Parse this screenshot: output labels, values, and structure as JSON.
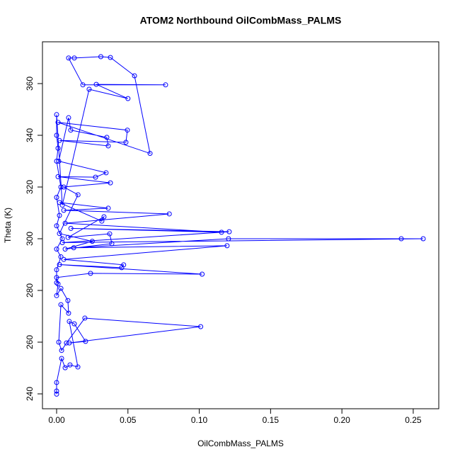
{
  "chart_data": {
    "type": "line",
    "title": "ATOM2 Northbound OilCombMass_PALMS",
    "x_label": "OilCombMass_PALMS",
    "y_label": "Theta (K)",
    "color": "#0000ff",
    "markers": true,
    "xlim": [
      -0.00992,
      0.2679
    ],
    "ylim": [
      234.25,
      376.16
    ],
    "xticks": [
      {
        "value": 0,
        "label": "0.00"
      },
      {
        "value": 0.05,
        "label": "0.05"
      },
      {
        "value": 0.1,
        "label": "0.10"
      },
      {
        "value": 0.15,
        "label": "0.15"
      },
      {
        "value": 0.2,
        "label": "0.20"
      },
      {
        "value": 0.25,
        "label": "0.25"
      }
    ],
    "yticks": [
      240,
      260,
      280,
      300,
      320,
      340,
      360
    ],
    "x": [
      0,
      0,
      0,
      0.0035,
      0.006,
      0.0094,
      0.0149,
      0.0089,
      0.0124,
      0.0203,
      0.0089,
      0.101,
      0.0198,
      0.0069,
      0.0035,
      0.0015,
      0.003,
      0.0084,
      0.0079,
      0.003,
      0,
      0.001,
      0,
      0.0238,
      0.102,
      0.002,
      0.0456,
      0.047,
      0.005,
      0.1195,
      0.012,
      0.1205,
      0.2416,
      0.257,
      0.004,
      0.121,
      0.01,
      0.1156,
      0.006,
      0.079,
      0.005,
      0.0362,
      0.002,
      0.0317,
      0.0332,
      0.008,
      0.0372,
      0.0387,
      0.006,
      0.025,
      0.002,
      0.015,
      0.005,
      0.0377,
      0.001,
      0.0273,
      0.0347,
      0.0015,
      0.0084,
      0.0099,
      0.0352,
      0.0362,
      0.002,
      0.0486,
      0.0496,
      0.001,
      0.0655,
      0.0546,
      0.0377,
      0.031,
      0.0124,
      0.0084,
      0.0184,
      0.0764,
      0.0278,
      0.05,
      0.0228,
      0.004,
      0,
      0,
      0.001,
      0,
      0.003,
      0,
      0.002,
      0,
      0.004,
      0,
      0.003,
      0,
      0
    ],
    "y": [
      241.1,
      239.9,
      244.4,
      253.7,
      250.1,
      251.2,
      250.4,
      268,
      267.1,
      260.3,
      259.7,
      266,
      269.3,
      259.7,
      256.8,
      260,
      274.5,
      271.2,
      276.1,
      280.8,
      278,
      282.5,
      285,
      286.6,
      286.3,
      290,
      288.8,
      289.9,
      292,
      297.3,
      296.5,
      300,
      300,
      300,
      298.5,
      302.7,
      304,
      302.5,
      306,
      309.6,
      311,
      311.8,
      314,
      306.8,
      308.5,
      300.5,
      301.9,
      298.1,
      296,
      299,
      302,
      317,
      320,
      321.6,
      324,
      323.8,
      325.5,
      330,
      346.8,
      342,
      339.2,
      335.9,
      338,
      337.3,
      342,
      345,
      333,
      363,
      370.1,
      370.4,
      369.9,
      369.9,
      359.5,
      359.5,
      359.7,
      354.2,
      357.8,
      313,
      348,
      340,
      335,
      330,
      320,
      316,
      309,
      305,
      300,
      296,
      293,
      288,
      283
    ]
  }
}
